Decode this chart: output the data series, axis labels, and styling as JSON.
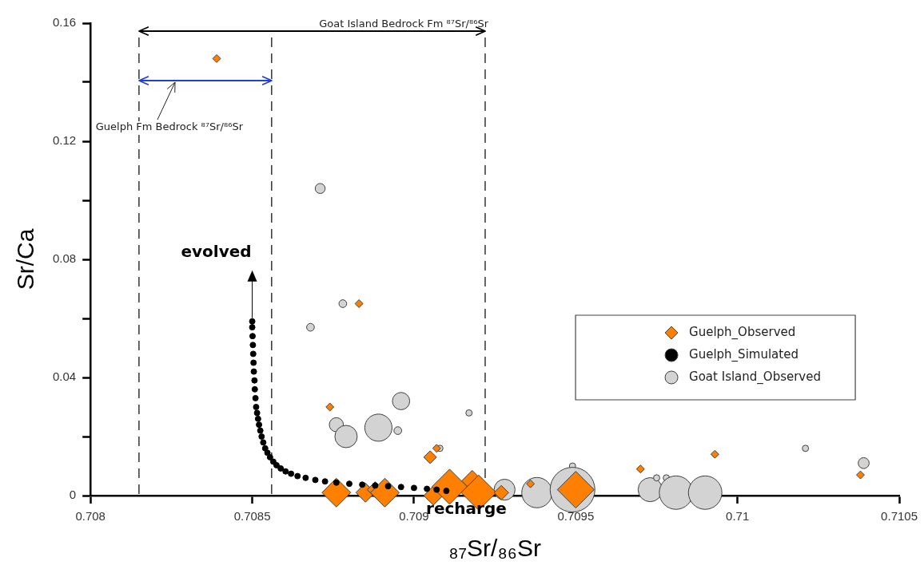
{
  "chart_data": {
    "type": "bubble",
    "xlabel": "₈₇Sr/₈₆Sr",
    "ylabel": "Sr/Ca",
    "xlim": [
      0.708,
      0.7105
    ],
    "xticks": [
      0.708,
      0.7085,
      0.709,
      0.7095,
      0.71,
      0.7105
    ],
    "ylim": [
      0,
      0.16
    ],
    "yticks": [
      0,
      {
        "value": 0.02,
        "label": null
      },
      0.04,
      {
        "value": 0.06,
        "label": null
      },
      0.08,
      {
        "value": 0.1,
        "label": null
      },
      0.12,
      {
        "value": 0.14,
        "label": null
      },
      0.16
    ],
    "grid": false,
    "legend": "right",
    "series": [
      {
        "name": "Guelph_Observed",
        "color": "#ff8000",
        "marker": "diamond",
        "x": [
          0.70839,
          0.70883,
          0.70874,
          0.70905,
          0.70907,
          0.70876,
          0.70885,
          0.70888,
          0.70891,
          0.70906,
          0.70911,
          0.70918,
          0.7092,
          0.70927,
          0.70936,
          0.7095,
          0.7097,
          0.70993,
          0.71038
        ],
        "values": [
          0.148,
          0.065,
          0.03,
          0.013,
          0.016,
          0.001,
          0.001,
          0.002,
          0.001,
          0.0,
          0.003,
          0.005,
          0.001,
          0.001,
          0.004,
          0.002,
          0.009,
          0.014,
          0.007
        ],
        "sizes": [
          0.02,
          0.02,
          0.02,
          0.052,
          0.02,
          0.263,
          0.117,
          0.081,
          0.263,
          0.117,
          0.393,
          0.137,
          0.393,
          0.066,
          0.02,
          0.43,
          0.02,
          0.02,
          0.02
        ]
      },
      {
        "name": "Guelph_Simulated",
        "color": "#000000",
        "type": "scatter",
        "marker": "circle",
        "x": [
          0.7085,
          0.7085,
          0.708501,
          0.708502,
          0.708503,
          0.708504,
          0.708505,
          0.708507,
          0.708508,
          0.70851,
          0.708512,
          0.708515,
          0.708518,
          0.708521,
          0.708525,
          0.708529,
          0.708534,
          0.70854,
          0.708547,
          0.708555,
          0.708565,
          0.708575,
          0.708588,
          0.708603,
          0.70862,
          0.70864,
          0.708665,
          0.708695,
          0.708725,
          0.70876,
          0.7088,
          0.70884,
          0.70888,
          0.70892,
          0.70896,
          0.709,
          0.70904,
          0.70907,
          0.7091
        ],
        "values": [
          0.059,
          0.057,
          0.054,
          0.051,
          0.048,
          0.045,
          0.042,
          0.039,
          0.036,
          0.033,
          0.03,
          0.028,
          0.026,
          0.024,
          0.022,
          0.02,
          0.018,
          0.016,
          0.0145,
          0.013,
          0.0115,
          0.0103,
          0.0092,
          0.0082,
          0.0074,
          0.0066,
          0.006,
          0.0053,
          0.0048,
          0.0044,
          0.004,
          0.0037,
          0.0034,
          0.0032,
          0.0029,
          0.0026,
          0.0023,
          0.002,
          0.0016
        ]
      },
      {
        "name": "Goat Island_Observed",
        "color": "#d3d3d3",
        "marker": "circle",
        "x": [
          0.70871,
          0.70878,
          0.70868,
          0.70896,
          0.70876,
          0.70879,
          0.70889,
          0.70895,
          0.70917,
          0.70908,
          0.70949,
          0.70928,
          0.70938,
          0.70949,
          0.70973,
          0.70975,
          0.70978,
          0.70981,
          0.7099,
          0.71021,
          0.71039
        ],
        "values": [
          0.104,
          0.065,
          0.057,
          0.032,
          0.024,
          0.02,
          0.023,
          0.022,
          0.028,
          0.016,
          0.01,
          0.002,
          0.001,
          0.002,
          0.002,
          0.006,
          0.006,
          0.001,
          0.001,
          0.016,
          0.011
        ],
        "sizes": [
          0.05,
          0.03,
          0.03,
          0.15,
          0.1,
          0.25,
          0.37,
          0.03,
          0.02,
          0.02,
          0.02,
          0.22,
          0.46,
          1,
          0.29,
          0.02,
          0.02,
          0.56,
          0.56,
          0.02,
          0.06
        ]
      }
    ],
    "ref_lines": [
      {
        "axis": "x",
        "value": 0.70815,
        "color": "#000000",
        "line_style": "dashed"
      },
      {
        "axis": "x",
        "value": 0.70856,
        "color": "#000000",
        "line_style": "dashed"
      },
      {
        "axis": "x",
        "value": 0.70922,
        "color": "#000000",
        "line_style": "dashed"
      }
    ],
    "annotations": [
      "evolved",
      {
        "text": "recharge",
        "x": 0.7091,
        "y": 0.0016
      },
      "Goat Island Bedrock Fm ⁸⁷Sr/⁸⁶Sr",
      "Guelph Fm Bedrock ⁸⁷Sr/⁸⁶Sr"
    ]
  }
}
